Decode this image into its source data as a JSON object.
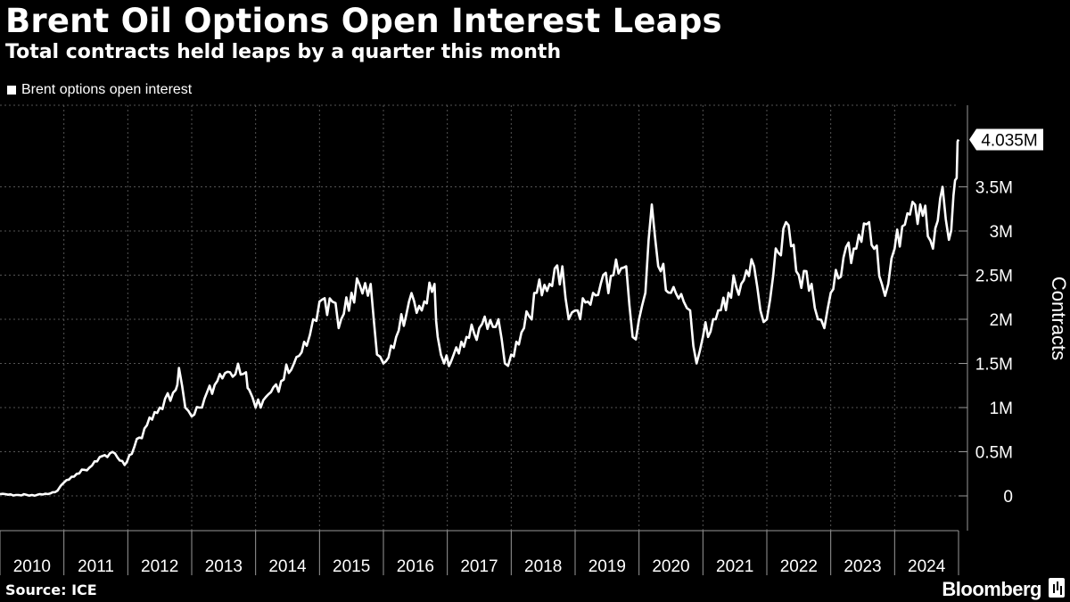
{
  "header": {
    "title": "Brent Oil Options Open Interest Leaps",
    "subtitle": "Total contracts held leaps by a quarter this month"
  },
  "legend": {
    "label": "Brent options open interest"
  },
  "footer": {
    "source": "Source: ICE",
    "brand": "Bloomberg"
  },
  "colors": {
    "background": "#000000",
    "line": "#ffffff",
    "grid": "#555555",
    "axis": "#999999"
  },
  "chart_data": {
    "type": "line",
    "ylabel": "Contracts",
    "ylim": [
      -0.35,
      4.4
    ],
    "y_ticks": [
      0,
      0.5,
      1,
      1.5,
      2,
      2.5,
      3,
      3.5
    ],
    "y_tick_labels": [
      "0",
      "0.5M",
      "1M",
      "1.5M",
      "2M",
      "2.5M",
      "3M",
      "3.5M"
    ],
    "x_tick_labels": [
      "2010",
      "2011",
      "2012",
      "2013",
      "2014",
      "2015",
      "2016",
      "2017",
      "2018",
      "2019",
      "2020",
      "2021",
      "2022",
      "2023",
      "2024"
    ],
    "last_value_label": "4.035M",
    "series": [
      {
        "values_unit": "million contracts",
        "x": [
          2010.0,
          2010.25,
          2010.5,
          2010.75,
          2010.9,
          2011.0,
          2011.2,
          2011.4,
          2011.6,
          2011.8,
          2011.95,
          2012.1,
          2012.3,
          2012.5,
          2012.75,
          2012.8,
          2012.9,
          2013.0,
          2013.2,
          2013.4,
          2013.6,
          2013.85,
          2013.9,
          2014.0,
          2014.2,
          2014.4,
          2014.6,
          2014.8,
          2014.9,
          2015.0,
          2015.2,
          2015.3,
          2015.5,
          2015.8,
          2015.9,
          2016.0,
          2016.2,
          2016.4,
          2016.6,
          2016.8,
          2016.85,
          2016.95,
          2017.1,
          2017.3,
          2017.5,
          2017.8,
          2017.9,
          2018.0,
          2018.2,
          2018.4,
          2018.6,
          2018.8,
          2018.9,
          2019.0,
          2019.2,
          2019.4,
          2019.6,
          2019.8,
          2019.9,
          2020.0,
          2020.1,
          2020.2,
          2020.3,
          2020.5,
          2020.7,
          2020.8,
          2020.9,
          2021.0,
          2021.2,
          2021.4,
          2021.6,
          2021.8,
          2021.9,
          2022.0,
          2022.1,
          2022.3,
          2022.5,
          2022.7,
          2022.8,
          2022.9,
          2023.0,
          2023.2,
          2023.4,
          2023.6,
          2023.8,
          2023.9,
          2024.0,
          2024.2,
          2024.4,
          2024.6,
          2024.75,
          2024.85,
          2024.92,
          2024.97,
          2025.0
        ],
        "y": [
          0.02,
          0.01,
          0.01,
          0.02,
          0.06,
          0.15,
          0.25,
          0.32,
          0.45,
          0.48,
          0.35,
          0.55,
          0.8,
          1.0,
          1.2,
          1.45,
          1.0,
          0.9,
          1.1,
          1.3,
          1.4,
          1.4,
          1.2,
          1.0,
          1.15,
          1.3,
          1.5,
          1.7,
          2.0,
          2.2,
          2.2,
          1.9,
          2.3,
          2.4,
          1.6,
          1.5,
          1.8,
          2.2,
          2.1,
          2.4,
          1.8,
          1.5,
          1.6,
          1.8,
          1.9,
          2.0,
          1.5,
          1.6,
          1.9,
          2.3,
          2.4,
          2.6,
          2.0,
          2.1,
          2.2,
          2.4,
          2.5,
          2.6,
          1.8,
          2.0,
          2.3,
          3.3,
          2.6,
          2.3,
          2.2,
          2.1,
          1.5,
          1.8,
          2.0,
          2.3,
          2.4,
          2.6,
          2.1,
          2.0,
          2.5,
          3.1,
          2.5,
          2.4,
          2.0,
          1.9,
          2.3,
          2.7,
          2.8,
          3.1,
          2.4,
          2.4,
          2.8,
          3.2,
          3.3,
          2.8,
          3.5,
          2.9,
          3.4,
          3.6,
          4.035
        ]
      }
    ]
  }
}
